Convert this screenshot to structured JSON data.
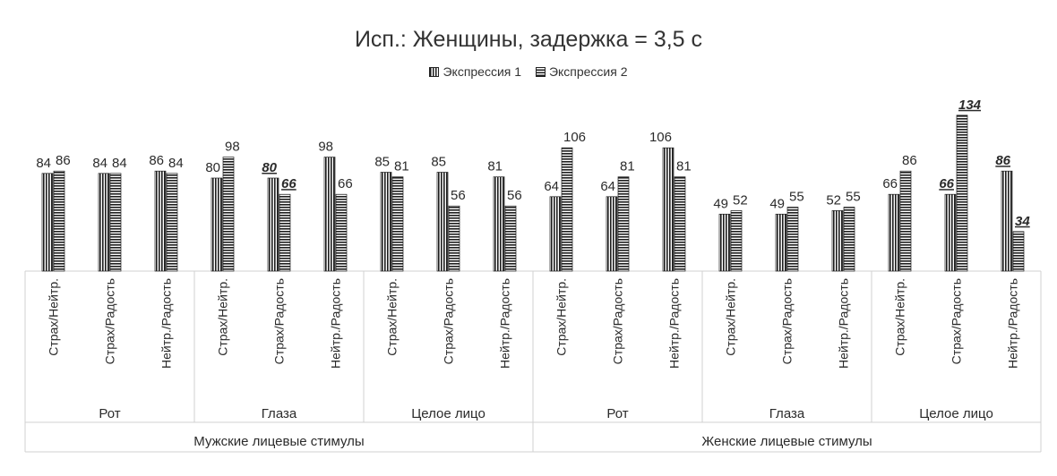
{
  "chart_data": {
    "type": "bar",
    "title": "Исп.: Женщины, задержка = 3,5 с",
    "legend_position": "top",
    "series": [
      {
        "name": "Экспрессия 1",
        "pattern": "vertical-stripes",
        "values": [
          84,
          84,
          86,
          80,
          80,
          98,
          85,
          85,
          81,
          64,
          64,
          106,
          49,
          49,
          52,
          66,
          66,
          86
        ],
        "emphasized": [
          false,
          false,
          false,
          false,
          true,
          false,
          false,
          false,
          false,
          false,
          false,
          false,
          false,
          false,
          false,
          false,
          true,
          true
        ]
      },
      {
        "name": "Экспрессия 2",
        "pattern": "horizontal-stripes",
        "values": [
          86,
          84,
          84,
          98,
          66,
          66,
          81,
          56,
          56,
          106,
          81,
          81,
          52,
          55,
          55,
          86,
          134,
          34
        ],
        "emphasized": [
          false,
          false,
          false,
          false,
          true,
          false,
          false,
          false,
          false,
          false,
          false,
          false,
          false,
          false,
          false,
          false,
          true,
          true
        ]
      }
    ],
    "categories": [
      "Страх/Нейтр.",
      "Страх/Радость",
      "Нейтр./Радость",
      "Страх/Нейтр.",
      "Страх/Радость",
      "Нейтр./Радость",
      "Страх/Нейтр.",
      "Страх/Радость",
      "Нейтр./Радость",
      "Страх/Нейтр.",
      "Страх/Радость",
      "Нейтр./Радость",
      "Страх/Нейтр.",
      "Страх/Радость",
      "Нейтр./Радость",
      "Страх/Нейтр.",
      "Страх/Радость",
      "Нейтр./Радость"
    ],
    "group_labels": [
      "Рот",
      "Глаза",
      "Целое лицо",
      "Рот",
      "Глаза",
      "Целое лицо"
    ],
    "supergroup_labels": [
      "Мужские лицевые стимулы",
      "Женские лицевые стимулы"
    ],
    "ylim": [
      0,
      140
    ],
    "grid": false
  }
}
